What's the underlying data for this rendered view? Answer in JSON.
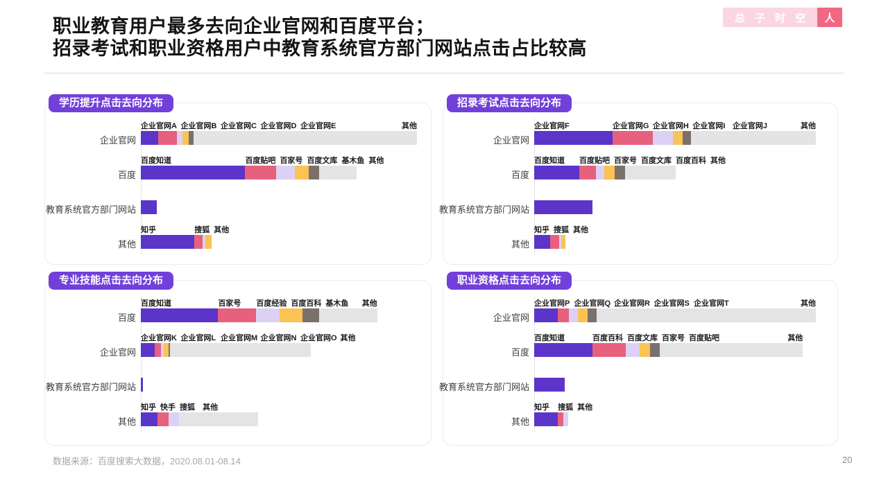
{
  "header": {
    "title_line1": "职业教育用户最多去向企业官网和百度平台；",
    "title_line2": "招录考试和职业资格用户中教育系统官方部门网站点击占比较高",
    "logo_chars": [
      "总",
      "子",
      "时",
      "空"
    ],
    "logo_last_char": "人",
    "logo_bg_color": "#FAD7E0",
    "logo_accent_color": "#F26882"
  },
  "footer": {
    "source": "数据来源：百度搜索大数据，2020.08.01-08.14",
    "page": "20"
  },
  "palette": {
    "purple": "#5B35C9",
    "pink": "#E7607E",
    "lavender": "#DCD1F4",
    "yellow": "#FAC354",
    "brown": "#7C706B",
    "gray": "#E4E4E7",
    "badge": "#7240D9"
  },
  "chart_data": [
    {
      "type": "bar",
      "title": "学历提升点击去向分布",
      "orientation": "horizontal-stacked",
      "unit": "percent-of-axis-width",
      "rows": [
        {
          "category": "企业官网",
          "segments": [
            {
              "label": "企业官网A",
              "value": 6.2,
              "color": "purple"
            },
            {
              "label": "企业官网B",
              "value": 6.8,
              "color": "pink"
            },
            {
              "label": "企业官网C",
              "value": 2.1,
              "color": "lavender"
            },
            {
              "label": "企业官网D",
              "value": 2.3,
              "color": "yellow"
            },
            {
              "label": "企业官网E",
              "value": 1.7,
              "color": "brown"
            },
            {
              "label": "其他",
              "value": 80.9,
              "color": "gray"
            }
          ]
        },
        {
          "category": "百度",
          "segments": [
            {
              "label": "百度知道",
              "value": 37.8,
              "color": "purple"
            },
            {
              "label": "百度贴吧",
              "value": 11.3,
              "color": "pink"
            },
            {
              "label": "百家号",
              "value": 6.7,
              "color": "lavender"
            },
            {
              "label": "百度文库",
              "value": 5.0,
              "color": "yellow"
            },
            {
              "label": "基木鱼",
              "value": 3.8,
              "color": "brown"
            },
            {
              "label": "其他",
              "value": 13.6,
              "color": "gray"
            }
          ]
        },
        {
          "category": "教育系统官方部门网站",
          "segments": [
            {
              "label": "",
              "value": 5.9,
              "color": "purple"
            }
          ]
        },
        {
          "category": "其他",
          "segments": [
            {
              "label": "知乎",
              "value": 19.4,
              "color": "purple"
            },
            {
              "label": "搜狐",
              "value": 2.9,
              "color": "pink"
            },
            {
              "label": "",
              "value": 1.0,
              "color": "lavender"
            },
            {
              "label": "其他",
              "value": 2.3,
              "color": "yellow"
            }
          ]
        }
      ]
    },
    {
      "type": "bar",
      "title": "招录考试点击去向分布",
      "orientation": "horizontal-stacked",
      "unit": "percent-of-axis-width",
      "rows": [
        {
          "category": "企业官网",
          "segments": [
            {
              "label": "企业官网F",
              "value": 27.8,
              "color": "purple"
            },
            {
              "label": "企业官网G",
              "value": 14.3,
              "color": "pink"
            },
            {
              "label": "企业官网H",
              "value": 7.2,
              "color": "lavender"
            },
            {
              "label": "企业官网I",
              "value": 3.5,
              "color": "yellow"
            },
            {
              "label": "企业官网J",
              "value": 2.8,
              "color": "brown"
            },
            {
              "label": "其他",
              "value": 44.4,
              "color": "gray"
            }
          ]
        },
        {
          "category": "百度",
          "segments": [
            {
              "label": "百度知道",
              "value": 16.0,
              "color": "purple"
            },
            {
              "label": "百度贴吧",
              "value": 5.9,
              "color": "pink"
            },
            {
              "label": "百家号",
              "value": 2.9,
              "color": "lavender"
            },
            {
              "label": "百度文库",
              "value": 3.7,
              "color": "yellow"
            },
            {
              "label": "百度百科",
              "value": 3.7,
              "color": "brown"
            },
            {
              "label": "其他",
              "value": 18.1,
              "color": "gray"
            }
          ]
        },
        {
          "category": "教育系统官方部门网站",
          "segments": [
            {
              "label": "",
              "value": 20.7,
              "color": "purple"
            }
          ]
        },
        {
          "category": "其他",
          "segments": [
            {
              "label": "知乎",
              "value": 5.7,
              "color": "purple"
            },
            {
              "label": "搜狐",
              "value": 3.1,
              "color": "pink"
            },
            {
              "label": "",
              "value": 0.7,
              "color": "lavender"
            },
            {
              "label": "其他",
              "value": 1.5,
              "color": "yellow"
            }
          ]
        }
      ]
    },
    {
      "type": "bar",
      "title": "专业技能点击去向分布",
      "orientation": "horizontal-stacked",
      "unit": "percent-of-axis-width",
      "rows": [
        {
          "category": "百度",
          "segments": [
            {
              "label": "百度知道",
              "value": 28.0,
              "color": "purple"
            },
            {
              "label": "百家号",
              "value": 13.8,
              "color": "pink"
            },
            {
              "label": "百度经验",
              "value": 8.4,
              "color": "lavender"
            },
            {
              "label": "百度百科",
              "value": 8.4,
              "color": "yellow"
            },
            {
              "label": "基木鱼",
              "value": 5.9,
              "color": "brown"
            },
            {
              "label": "其他",
              "value": 21.1,
              "color": "gray"
            }
          ]
        },
        {
          "category": "企业官网",
          "segments": [
            {
              "label": "企业官网K",
              "value": 5.0,
              "color": "purple"
            },
            {
              "label": "企业官网L",
              "value": 2.3,
              "color": "pink"
            },
            {
              "label": "企业官网M",
              "value": 1.0,
              "color": "lavender"
            },
            {
              "label": "企业官网N",
              "value": 1.8,
              "color": "yellow"
            },
            {
              "label": "企业官网O",
              "value": 0.5,
              "color": "brown"
            },
            {
              "label": "其他",
              "value": 51.0,
              "color": "gray"
            }
          ]
        },
        {
          "category": "教育系统官方部门网站",
          "segments": [
            {
              "label": "",
              "value": 0.7,
              "color": "purple"
            }
          ]
        },
        {
          "category": "其他",
          "segments": [
            {
              "label": "知乎",
              "value": 6.1,
              "color": "purple"
            },
            {
              "label": "快手",
              "value": 4.0,
              "color": "pink"
            },
            {
              "label": "搜狐",
              "value": 3.8,
              "color": "lavender"
            },
            {
              "label": "其他",
              "value": 28.5,
              "color": "gray",
              "label_x_pct": 22.4
            }
          ]
        }
      ]
    },
    {
      "type": "bar",
      "title": "职业资格点击去向分布",
      "orientation": "horizontal-stacked",
      "unit": "percent-of-axis-width",
      "rows": [
        {
          "category": "企业官网",
          "segments": [
            {
              "label": "企业官网P",
              "value": 8.4,
              "color": "purple"
            },
            {
              "label": "企业官网Q",
              "value": 3.9,
              "color": "pink"
            },
            {
              "label": "企业官网R",
              "value": 3.3,
              "color": "lavender"
            },
            {
              "label": "企业官网S",
              "value": 3.3,
              "color": "yellow"
            },
            {
              "label": "企业官网T",
              "value": 3.3,
              "color": "brown"
            },
            {
              "label": "其他",
              "value": 77.8,
              "color": "gray"
            }
          ]
        },
        {
          "category": "百度",
          "segments": [
            {
              "label": "百度知道",
              "value": 20.7,
              "color": "purple"
            },
            {
              "label": "百度百科",
              "value": 11.9,
              "color": "pink"
            },
            {
              "label": "百度文库",
              "value": 4.9,
              "color": "lavender"
            },
            {
              "label": "百家号",
              "value": 3.7,
              "color": "yellow"
            },
            {
              "label": "百度贴吧",
              "value": 3.3,
              "color": "brown"
            },
            {
              "label": "其他",
              "value": 50.9,
              "color": "gray"
            }
          ]
        },
        {
          "category": "教育系统官方部门网站",
          "segments": [
            {
              "label": "",
              "value": 10.8,
              "color": "purple"
            }
          ]
        },
        {
          "category": "其他",
          "segments": [
            {
              "label": "知乎",
              "value": 8.4,
              "color": "purple"
            },
            {
              "label": "搜狐",
              "value": 2.0,
              "color": "pink"
            },
            {
              "label": "其他",
              "value": 1.6,
              "color": "lavender"
            }
          ]
        }
      ]
    }
  ]
}
